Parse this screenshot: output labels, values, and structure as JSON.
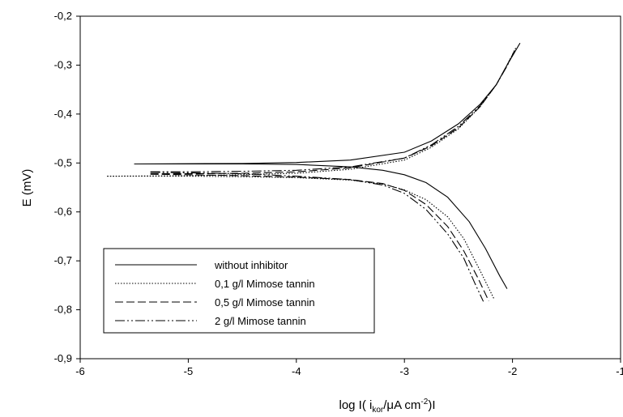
{
  "chart_data": {
    "type": "line",
    "xlabel": "log I( i",
    "xlabel_sub": "kor",
    "xlabel_mid": "/μA cm",
    "xlabel_sup": "-2",
    "xlabel_end": ")I",
    "ylabel": "E (mV)",
    "xlim": [
      -6,
      -1
    ],
    "ylim": [
      -0.9,
      -0.2
    ],
    "x_ticks": [
      -6,
      -5,
      -4,
      -3,
      -2,
      -1
    ],
    "y_ticks": [
      -0.9,
      -0.8,
      -0.7,
      -0.6,
      -0.5,
      -0.4,
      -0.3,
      -0.2
    ],
    "x_tick_labels": [
      "-6",
      "-5",
      "-4",
      "-3",
      "-2",
      "-1"
    ],
    "y_tick_labels": [
      "-0,9",
      "-0,8",
      "-0,7",
      "-0,6",
      "-0,5",
      "-0,4",
      "-0,3",
      "-0,2"
    ],
    "grid": false,
    "legend_position": "bottom-left",
    "series": [
      {
        "name": "without inhibitor",
        "dash": "solid",
        "anodic": [
          [
            -5.5,
            -0.502
          ],
          [
            -4.5,
            -0.501
          ],
          [
            -4.0,
            -0.499
          ],
          [
            -3.5,
            -0.494
          ],
          [
            -3.0,
            -0.478
          ],
          [
            -2.75,
            -0.455
          ],
          [
            -2.5,
            -0.42
          ],
          [
            -2.3,
            -0.38
          ],
          [
            -2.15,
            -0.34
          ],
          [
            -2.05,
            -0.3
          ],
          [
            -1.93,
            -0.255
          ]
        ],
        "cathodic": [
          [
            -5.5,
            -0.502
          ],
          [
            -4.5,
            -0.502
          ],
          [
            -4.0,
            -0.503
          ],
          [
            -3.5,
            -0.508
          ],
          [
            -3.2,
            -0.515
          ],
          [
            -3.0,
            -0.524
          ],
          [
            -2.8,
            -0.54
          ],
          [
            -2.6,
            -0.57
          ],
          [
            -2.4,
            -0.62
          ],
          [
            -2.25,
            -0.675
          ],
          [
            -2.12,
            -0.73
          ],
          [
            -2.05,
            -0.757
          ]
        ]
      },
      {
        "name": "0,1 g/l  Mimose tannin",
        "dash": "dotted",
        "anodic": [
          [
            -5.75,
            -0.527
          ],
          [
            -5.0,
            -0.526
          ],
          [
            -4.5,
            -0.524
          ],
          [
            -4.0,
            -0.521
          ],
          [
            -3.5,
            -0.513
          ],
          [
            -3.0,
            -0.494
          ],
          [
            -2.75,
            -0.468
          ],
          [
            -2.5,
            -0.43
          ],
          [
            -2.3,
            -0.385
          ],
          [
            -2.15,
            -0.34
          ],
          [
            -2.05,
            -0.3
          ],
          [
            -1.97,
            -0.265
          ]
        ],
        "cathodic": [
          [
            -5.75,
            -0.527
          ],
          [
            -5.0,
            -0.527
          ],
          [
            -4.5,
            -0.528
          ],
          [
            -4.0,
            -0.53
          ],
          [
            -3.5,
            -0.535
          ],
          [
            -3.2,
            -0.543
          ],
          [
            -3.0,
            -0.555
          ],
          [
            -2.8,
            -0.575
          ],
          [
            -2.6,
            -0.61
          ],
          [
            -2.45,
            -0.655
          ],
          [
            -2.3,
            -0.72
          ],
          [
            -2.17,
            -0.778
          ]
        ]
      },
      {
        "name": "0,5 g/l  Mimose tannin",
        "dash": "dashed",
        "anodic": [
          [
            -5.35,
            -0.522
          ],
          [
            -5.0,
            -0.522
          ],
          [
            -4.5,
            -0.521
          ],
          [
            -4.0,
            -0.518
          ],
          [
            -3.5,
            -0.51
          ],
          [
            -3.0,
            -0.49
          ],
          [
            -2.75,
            -0.465
          ],
          [
            -2.5,
            -0.428
          ],
          [
            -2.3,
            -0.385
          ],
          [
            -2.15,
            -0.34
          ],
          [
            -2.05,
            -0.3
          ],
          [
            -1.98,
            -0.27
          ]
        ],
        "cathodic": [
          [
            -5.35,
            -0.523
          ],
          [
            -5.0,
            -0.524
          ],
          [
            -4.5,
            -0.526
          ],
          [
            -4.0,
            -0.529
          ],
          [
            -3.5,
            -0.534
          ],
          [
            -3.2,
            -0.542
          ],
          [
            -3.0,
            -0.556
          ],
          [
            -2.8,
            -0.585
          ],
          [
            -2.6,
            -0.63
          ],
          [
            -2.45,
            -0.68
          ],
          [
            -2.32,
            -0.735
          ],
          [
            -2.22,
            -0.782
          ]
        ]
      },
      {
        "name": "2 g/l Mimose tannin",
        "dash": "dashdotdot",
        "anodic": [
          [
            -5.35,
            -0.518
          ],
          [
            -5.0,
            -0.518
          ],
          [
            -4.5,
            -0.517
          ],
          [
            -4.0,
            -0.515
          ],
          [
            -3.5,
            -0.508
          ],
          [
            -3.0,
            -0.49
          ],
          [
            -2.75,
            -0.463
          ],
          [
            -2.5,
            -0.425
          ],
          [
            -2.3,
            -0.383
          ],
          [
            -2.15,
            -0.34
          ],
          [
            -2.05,
            -0.302
          ],
          [
            -1.99,
            -0.275
          ]
        ],
        "cathodic": [
          [
            -5.35,
            -0.519
          ],
          [
            -5.0,
            -0.52
          ],
          [
            -4.5,
            -0.522
          ],
          [
            -4.0,
            -0.527
          ],
          [
            -3.5,
            -0.534
          ],
          [
            -3.2,
            -0.545
          ],
          [
            -3.0,
            -0.562
          ],
          [
            -2.8,
            -0.595
          ],
          [
            -2.6,
            -0.645
          ],
          [
            -2.45,
            -0.695
          ],
          [
            -2.35,
            -0.745
          ],
          [
            -2.27,
            -0.783
          ]
        ]
      }
    ]
  }
}
